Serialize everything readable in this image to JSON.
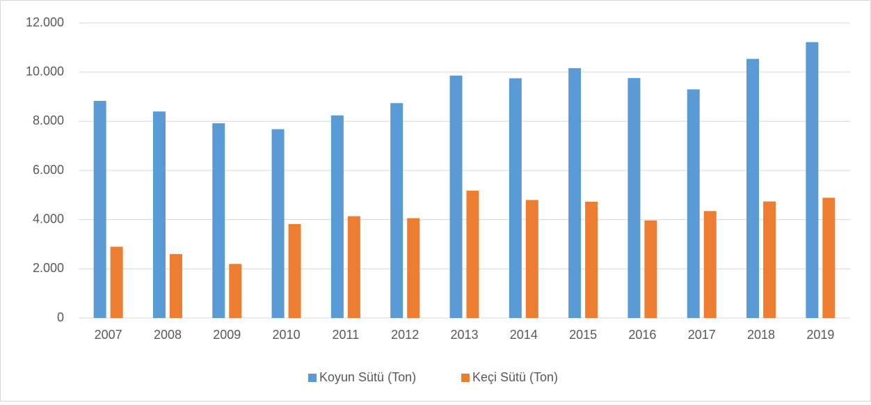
{
  "chart_data": {
    "type": "bar",
    "categories": [
      "2007",
      "2008",
      "2009",
      "2010",
      "2011",
      "2012",
      "2013",
      "2014",
      "2015",
      "2016",
      "2017",
      "2018",
      "2019"
    ],
    "series": [
      {
        "name": "Koyun Sütü (Ton)",
        "color": "#5b9bd5",
        "values": [
          8830,
          8400,
          7920,
          7680,
          8240,
          8740,
          9860,
          9750,
          10160,
          9760,
          9300,
          10540,
          11220
        ]
      },
      {
        "name": "Keçi Sütü (Ton)",
        "color": "#ed7d31",
        "values": [
          2900,
          2600,
          2200,
          3820,
          4140,
          4060,
          5180,
          4800,
          4730,
          3970,
          4350,
          4740,
          4890
        ]
      }
    ],
    "ylim": [
      0,
      12000
    ],
    "yticks": [
      0,
      {
        "value": 2000,
        "label": "2.000"
      },
      {
        "value": 4000,
        "label": "4.000"
      },
      {
        "value": 6000,
        "label": "6.000"
      },
      {
        "value": 8000,
        "label": "8.000"
      },
      {
        "value": 10000,
        "label": "10.000"
      },
      {
        "value": 12000,
        "label": "12.000"
      }
    ],
    "grid": true,
    "legend": "bottom"
  }
}
